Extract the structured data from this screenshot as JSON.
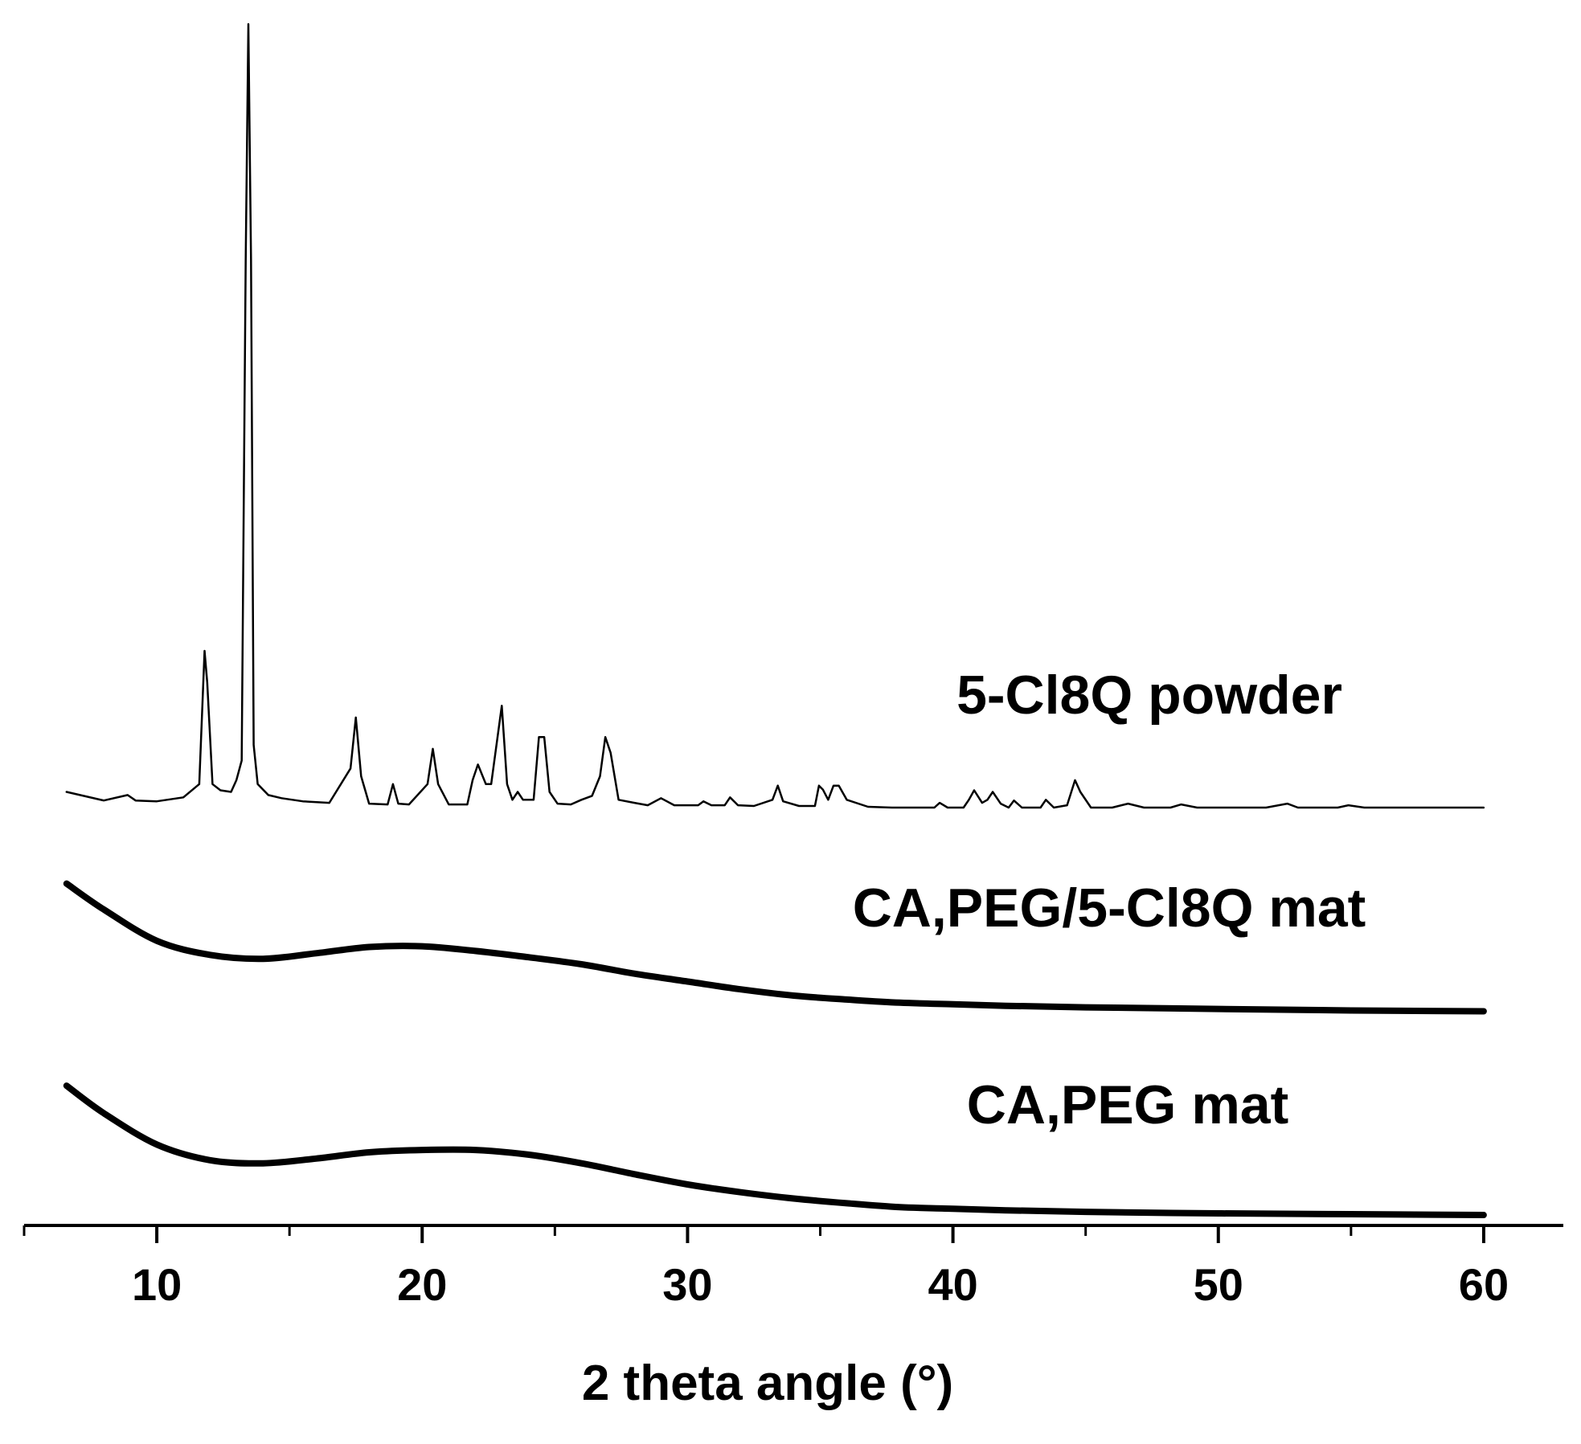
{
  "chart_data": {
    "type": "line",
    "title": "",
    "xlabel": "2 theta angle (°)",
    "ylabel": "",
    "xlim": [
      5,
      63
    ],
    "xticks": [
      10,
      20,
      30,
      40,
      50,
      60
    ],
    "minor_xticks": [
      5,
      15,
      25,
      35,
      45,
      55
    ],
    "y_axis_shown": false,
    "grid": false,
    "legend": "none",
    "line_color": "#000000",
    "series": [
      {
        "name": "5-Cl8Q powder",
        "baseline": 0,
        "x": [
          6.6,
          8.0,
          8.9,
          9.2,
          10.0,
          11.0,
          11.6,
          11.8,
          11.9,
          12.1,
          12.4,
          12.8,
          13.0,
          13.2,
          13.35,
          13.45,
          13.55,
          13.65,
          13.8,
          14.2,
          14.7,
          15.5,
          16.5,
          17.3,
          17.5,
          17.7,
          18.0,
          18.7,
          18.9,
          19.1,
          19.5,
          20.2,
          20.4,
          20.6,
          21.0,
          21.7,
          21.9,
          22.1,
          22.4,
          22.6,
          22.8,
          23.0,
          23.2,
          23.4,
          23.6,
          23.8,
          24.2,
          24.4,
          24.6,
          24.8,
          25.1,
          25.6,
          26.0,
          26.4,
          26.7,
          26.9,
          27.1,
          27.4,
          28.0,
          28.5,
          29.0,
          29.5,
          30.4,
          30.6,
          30.9,
          31.4,
          31.6,
          31.9,
          32.5,
          33.2,
          33.4,
          33.6,
          34.2,
          34.8,
          34.95,
          35.1,
          35.3,
          35.5,
          35.7,
          36.0,
          36.8,
          37.7,
          38.5,
          39.3,
          39.5,
          39.8,
          40.4,
          40.6,
          40.8,
          41.1,
          41.3,
          41.5,
          41.8,
          42.1,
          42.3,
          42.6,
          43.3,
          43.5,
          43.8,
          44.3,
          44.6,
          44.8,
          45.2,
          46.0,
          46.6,
          47.2,
          48.2,
          48.6,
          49.2,
          50.5,
          51.8,
          52.6,
          53.0,
          54.5,
          54.9,
          55.5,
          57.5,
          60.0
        ],
        "y": [
          2.0,
          0.9,
          1.6,
          0.9,
          0.8,
          1.3,
          3.0,
          20.0,
          16.0,
          3.0,
          2.2,
          2.0,
          3.5,
          6.0,
          70.0,
          100.0,
          70.0,
          8.0,
          3.0,
          1.6,
          1.2,
          0.8,
          0.6,
          5.0,
          11.5,
          4.0,
          0.5,
          0.4,
          3.0,
          0.5,
          0.4,
          3.0,
          7.5,
          3.0,
          0.4,
          0.4,
          3.5,
          5.5,
          3.0,
          3.0,
          8.0,
          13.0,
          3.0,
          1.0,
          2.0,
          1.0,
          1.0,
          9.0,
          9.0,
          2.0,
          0.5,
          0.4,
          1.0,
          1.5,
          4.0,
          9.0,
          7.0,
          1.0,
          0.6,
          0.3,
          1.2,
          0.3,
          0.3,
          0.8,
          0.3,
          0.3,
          1.3,
          0.3,
          0.2,
          1.0,
          2.8,
          0.8,
          0.2,
          0.2,
          2.8,
          2.3,
          1.0,
          2.8,
          2.8,
          1.0,
          0.1,
          0.0,
          0.0,
          0.0,
          0.6,
          0.0,
          0.0,
          1.0,
          2.2,
          0.6,
          1.0,
          2.0,
          0.5,
          0.0,
          0.9,
          0.0,
          0.0,
          1.0,
          0.0,
          0.3,
          3.5,
          2.0,
          0.0,
          0.0,
          0.5,
          0.0,
          0.0,
          0.4,
          0.0,
          0.0,
          0.0,
          0.5,
          0.0,
          0.0,
          0.3,
          0.0,
          0.0,
          0.0
        ]
      },
      {
        "name": "CA,PEG/5-Cl8Q mat",
        "baseline": -26,
        "x": [
          6.6,
          8.0,
          10.0,
          12.0,
          14.0,
          16.0,
          18.0,
          20.0,
          22.0,
          24.0,
          26.0,
          28.0,
          30.0,
          32.0,
          34.0,
          36.0,
          38.0,
          40.0,
          42.0,
          45.0,
          50.0,
          55.0,
          60.0
        ],
        "y": [
          16.3,
          13.0,
          9.0,
          7.2,
          6.7,
          7.4,
          8.2,
          8.3,
          7.7,
          6.9,
          6.0,
          4.8,
          3.8,
          2.8,
          2.0,
          1.5,
          1.1,
          0.9,
          0.7,
          0.5,
          0.3,
          0.1,
          0.0
        ]
      },
      {
        "name": "CA,PEG mat",
        "baseline": -52,
        "x": [
          6.6,
          8.0,
          10.0,
          12.0,
          14.0,
          16.0,
          18.0,
          20.0,
          22.0,
          24.0,
          26.0,
          28.0,
          30.0,
          32.0,
          34.0,
          36.0,
          38.0,
          40.0,
          42.0,
          45.0,
          50.0,
          55.0,
          60.0
        ],
        "y": [
          16.5,
          13.0,
          9.0,
          7.0,
          6.6,
          7.2,
          8.0,
          8.3,
          8.3,
          7.7,
          6.6,
          5.2,
          3.9,
          2.9,
          2.1,
          1.5,
          1.0,
          0.8,
          0.6,
          0.4,
          0.2,
          0.1,
          0.0
        ]
      }
    ]
  }
}
